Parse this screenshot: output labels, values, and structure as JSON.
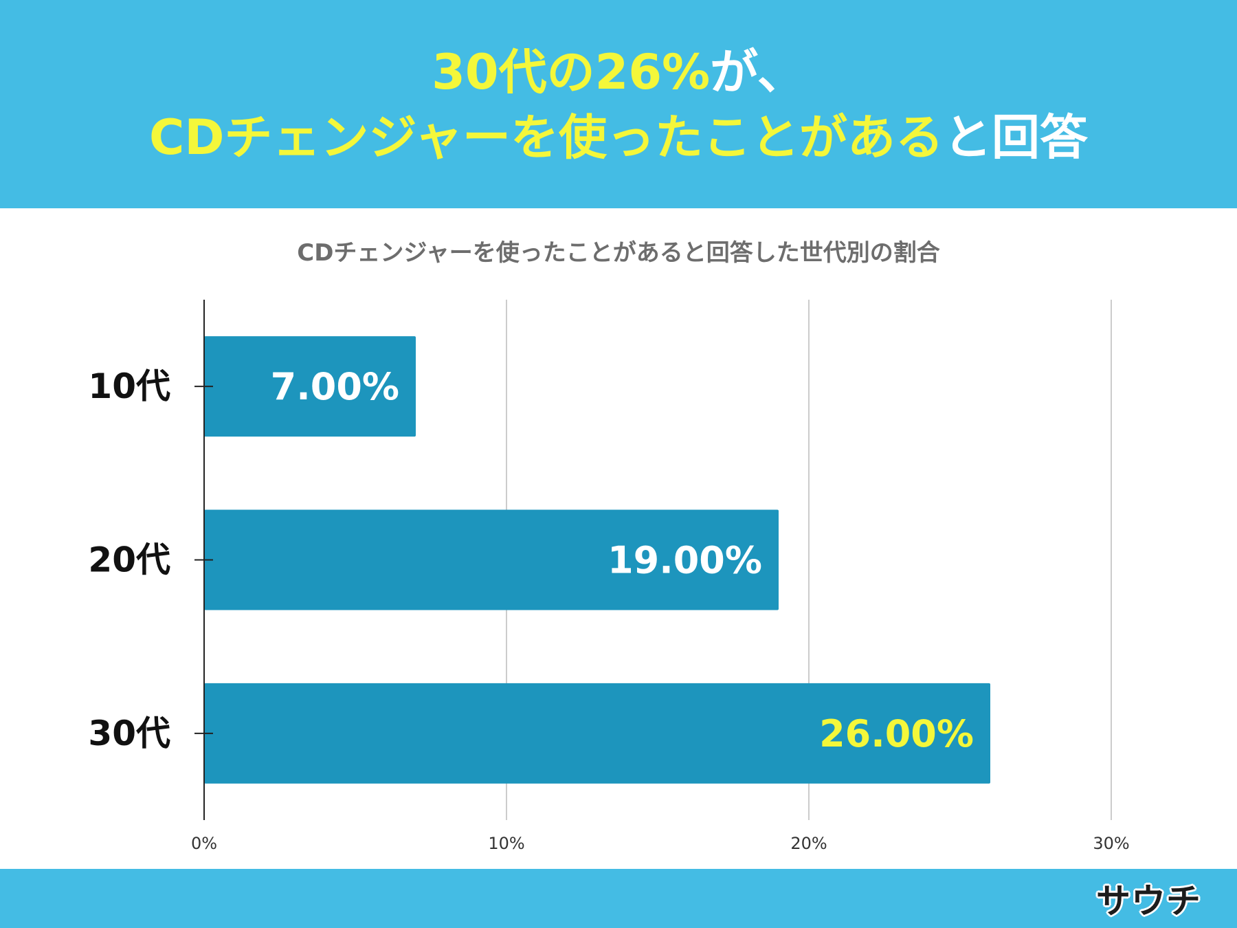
{
  "headline": {
    "line1": [
      {
        "text": "30代の26%",
        "color": "yellow"
      },
      {
        "text": "が、",
        "color": "white"
      }
    ],
    "line2": [
      {
        "text": "CDチェンジャーを使ったことがある",
        "color": "yellow"
      },
      {
        "text": "と回答",
        "color": "white"
      }
    ]
  },
  "chart_data": {
    "type": "bar",
    "orientation": "horizontal",
    "title": "CDチェンジャーを使ったことがあると回答した世代別の割合",
    "categories": [
      "10代",
      "20代",
      "30代"
    ],
    "values": [
      7.0,
      19.0,
      26.0
    ],
    "value_labels": [
      "7.00%",
      "19.00%",
      "26.00%"
    ],
    "highlight_index": 2,
    "x_ticks": [
      "0%",
      "10%",
      "20%",
      "30%"
    ],
    "xlim": [
      0,
      30
    ],
    "grid": true,
    "colors": {
      "bar": "#1d95bd",
      "label": "#ffffff",
      "highlight_label": "#f4f73a",
      "grid": "#cccccc",
      "axis": "#222222",
      "header": "#44bce4"
    }
  },
  "footer": {
    "logo": "サウチ"
  }
}
